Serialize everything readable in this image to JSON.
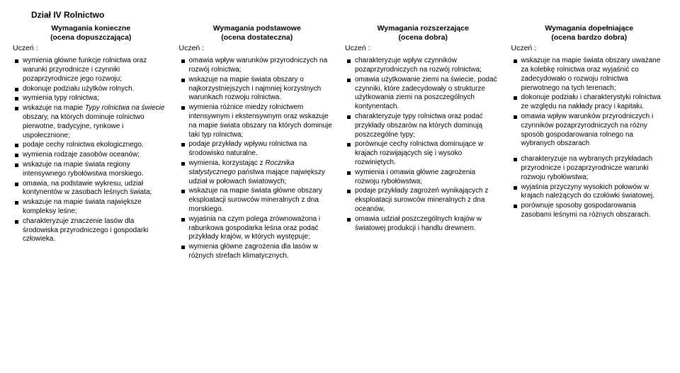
{
  "section_title": "Dział IV Rolnictwo",
  "student_label": "Uczeń :",
  "columns": [
    {
      "header_line1": "Wymagania konieczne",
      "header_line2": "(ocena dopuszczająca)",
      "items": [
        "wymienia główne funkcje rolnictwa oraz warunki przyrodnicze i czynniki pozaprzyrodnicze jego rozwoju;",
        "dokonuje podziału użytków rolnych.",
        "wymienia typy rolnictwa;",
        {
          "prefix": "wskazuje na mapie ",
          "italic": "Typy rolnictwa na świecie",
          "suffix": " obszary, na których dominuje rolnictwo pierwotne, tradycyjne, rynkowe i uspołecznione;"
        },
        "podaje cechy rolnictwa ekologicznego.",
        "wymienia rodzaje zasobów oceanów;",
        "wskazuje na mapie świata regiony intensywnego rybołówstwa morskiego.",
        "omawia, na podstawie wykresu, udział kontynentów w zasobach leśnych świata;",
        "wskazuje na mapie świata największe kompleksy leśne;",
        "charakteryzuje znaczenie lasów dla środowiska przyrodniczego i gospodarki człowieka."
      ]
    },
    {
      "header_line1": "Wymagania podstawowe",
      "header_line2": "(ocena dostateczna)",
      "items": [
        "omawia wpływ warunków przyrodniczych na rozwój rolnictwa;",
        "wskazuje na mapie świata obszary o najkorzystniejszych i najmniej korzystnych warunkach rozwoju rolnictwa.",
        "wymienia różnice miedzy rolnictwem intensywnym i ekstensywnym oraz wskazuje na mapie świata obszary na których dominuje taki typ rolnictwa;",
        "podaje przykłady wpływu rolnictwa na środowisko naturalne.",
        {
          "prefix": "wymienia, korzystając z ",
          "italic": "Rocznika statystycznego",
          "suffix": " państwa mające największy udział w połowach światowych;"
        },
        "wskazuje na mapie świata główne obszary eksploatacji surowców mineralnych z dna morskiego.",
        "wyjaśnia na czym polega zrównoważona i rabunkowa gospodarka leśna oraz podać przykłady krajów, w których występuje;",
        "wymienia główne zagrożenia dla lasów w różnych strefach klimatycznych."
      ]
    },
    {
      "header_line1": "Wymagania rozszerzające",
      "header_line2": "(ocena dobra)",
      "items": [
        "charakteryzuje wpływ czynników pozaprzyrodniczych na rozwój rolnictwa;",
        "omawia użytkowanie ziemi na świecie, podać czynniki, które zadecydowały o strukturze użytkowania ziemi na poszczególnych kontynentach.",
        "charakteryzuje typy rolnictwa oraz podać przykłady obszarów na których dominują poszczególne typy;",
        "porównuje cechy rolnictwa dominujące w krajach rozwijających się i wysoko rozwiniętych.",
        "wymienia i omawia główne zagrożenia rozwoju rybołówstwa;",
        "podaje przykłady zagrożeń wynikających z eksploatacji surowców mineralnych z dna oceanów.",
        "omawia udział poszczególnych krajów w światowej produkcji i handlu drewnem."
      ]
    },
    {
      "header_line1": "Wymagania dopełniające",
      "header_line2": "(ocena bardzo dobra)",
      "items": [
        "wskazuje na mapie świata obszary uważane za kolebkę rolnictwa oraz wyjaśnić co zadecydowało o rozwoju rolnictwa pierwotnego na tych terenach;",
        "dokonuje podziału i charakterystyki rolnictwa ze względu na nakłady pracy i kapitału.",
        "omawia wpływ warunków przyrodniczych i czynników pozaprzyrodniczych na różny sposób gospodarowania rolnego na wybranych obszarach",
        "__SPACER__",
        "charakteryzuje na wybranych przykładach przyrodnicze i pozaprzyrodnicze  warunki rozwoju rybołówstwa;",
        "wyjaśnia przyczyny wysokich połowów w krajach należących do czołówki światowej.",
        "porównuje sposoby gospodarowania zasobami leśnymi  na różnych obszarach."
      ]
    }
  ]
}
